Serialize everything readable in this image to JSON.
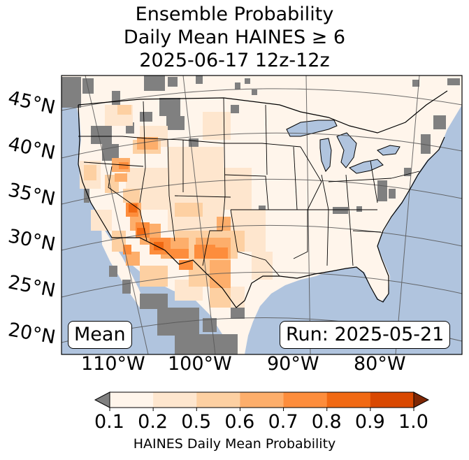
{
  "title": {
    "line1": "Ensemble Probability",
    "line2": "Daily Mean HAINES ≥ 6",
    "line3": "2025-06-17 12z-12z"
  },
  "map": {
    "latitude_labels": [
      "45°N",
      "40°N",
      "35°N",
      "30°N",
      "25°N",
      "20°N"
    ],
    "longitude_labels": [
      "110°W",
      "100°W",
      "90°W",
      "80°W"
    ],
    "stat_box": "Mean",
    "run_box": "Run: 2025-05-21",
    "colors": {
      "ocean": "#b0c4de",
      "missing": "#808080",
      "land_low": "#fff5eb"
    }
  },
  "colorbar": {
    "ticks": [
      "0.1",
      "0.2",
      "0.5",
      "0.6",
      "0.7",
      "0.8",
      "0.9",
      "1.0"
    ],
    "colors": [
      "#fff5eb",
      "#fee6ce",
      "#fdd0a2",
      "#fdae6b",
      "#fd8d3c",
      "#f16913",
      "#d94801"
    ],
    "under_color": "#808080",
    "over_color": "#7f2704",
    "label": "HAINES Daily Mean Probability"
  }
}
